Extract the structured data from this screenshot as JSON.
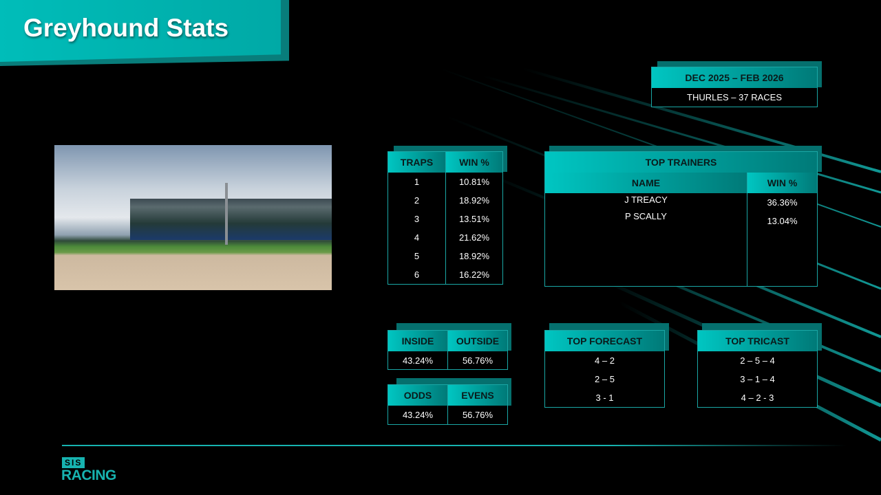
{
  "title": "Greyhound Stats",
  "colors": {
    "accent": "#00c0bd",
    "border": "#1aa8a6",
    "background": "#000000"
  },
  "period": {
    "range": "DEC 2025 –  FEB 2026",
    "venue": "THURLES –    37 RACES"
  },
  "traps": {
    "headers": [
      "TRAPS",
      "WIN %"
    ],
    "rows": [
      [
        "1",
        "10.81%"
      ],
      [
        "2",
        "18.92%"
      ],
      [
        "3",
        "13.51%"
      ],
      [
        "4",
        "21.62%"
      ],
      [
        "5",
        "18.92%"
      ],
      [
        "6",
        "16.22%"
      ]
    ]
  },
  "trainers": {
    "title": "TOP TRAINERS",
    "headers": [
      "NAME",
      "WIN %"
    ],
    "rows": [
      [
        "J TREACY",
        "36.36%"
      ],
      [
        "P SCALLY",
        "13.04%"
      ]
    ]
  },
  "inside_outside": {
    "headers": [
      "INSIDE",
      "OUTSIDE"
    ],
    "values": [
      "43.24%",
      "56.76%"
    ]
  },
  "odds_evens": {
    "headers": [
      "ODDS",
      "EVENS"
    ],
    "values": [
      "43.24%",
      "56.76%"
    ]
  },
  "forecast": {
    "title": "TOP FORECAST",
    "rows": [
      "4 – 2",
      "2 – 5",
      "3 - 1"
    ]
  },
  "tricast": {
    "title": "TOP TRICAST",
    "rows": [
      "2 – 5 – 4",
      "3 – 1 – 4",
      "4 – 2 - 3"
    ]
  },
  "logo": {
    "top": "SIS",
    "bottom": "RACING"
  }
}
